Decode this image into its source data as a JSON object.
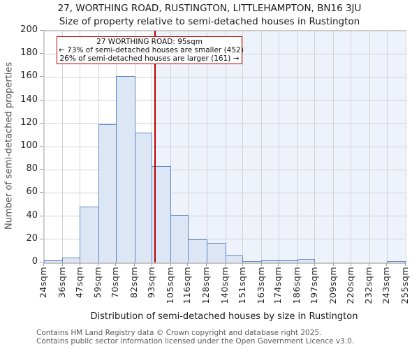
{
  "title": "27, WORTHING ROAD, RUSTINGTON, LITTLEHAMPTON, BN16 3JU",
  "subtitle": "Size of property relative to semi-detached houses in Rustington",
  "annotation": {
    "line1": "27 WORTHING ROAD: 95sqm",
    "line2": "← 73% of semi-detached houses are smaller (452)",
    "line3": "26% of semi-detached houses are larger (161) →"
  },
  "y_axis": {
    "label": "Number of semi-detached properties"
  },
  "x_axis": {
    "label": "Distribution of semi-detached houses by size in Rustington"
  },
  "footer": {
    "line1": "Contains HM Land Registry data © Crown copyright and database right 2025.",
    "line2": "Contains public sector information licensed under the Open Government Licence v3.0."
  },
  "colors": {
    "bar_fill": "#dde6f4",
    "bar_stroke": "#5b87c5",
    "marker_red": "#bb0000",
    "shade_right_of_marker": "#eef2fb",
    "gridline": "#d2d2d2",
    "annotation_border": "#bb0000"
  },
  "chart_data": {
    "type": "bar",
    "subtype": "histogram",
    "title": "27, WORTHING ROAD, RUSTINGTON, LITTLEHAMPTON, BN16 3JU",
    "subtitle": "Size of property relative to semi-detached houses in Rustington",
    "xlabel": "Distribution of semi-detached houses by size in Rustington",
    "ylabel": "Number of semi-detached properties",
    "bin_edges_sqm": [
      24,
      36,
      47,
      59,
      70,
      82,
      93,
      105,
      116,
      128,
      140,
      151,
      163,
      174,
      186,
      197,
      209,
      220,
      232,
      243,
      255
    ],
    "counts": [
      2,
      4,
      48,
      119,
      161,
      112,
      83,
      41,
      20,
      17,
      6,
      1,
      2,
      2,
      3,
      0,
      0,
      0,
      0,
      1
    ],
    "x_tick_labels": [
      "24sqm",
      "36sqm",
      "47sqm",
      "59sqm",
      "70sqm",
      "82sqm",
      "93sqm",
      "105sqm",
      "116sqm",
      "128sqm",
      "140sqm",
      "151sqm",
      "163sqm",
      "174sqm",
      "186sqm",
      "197sqm",
      "209sqm",
      "220sqm",
      "232sqm",
      "243sqm",
      "255sqm"
    ],
    "y_ticks": [
      0,
      20,
      40,
      60,
      80,
      100,
      120,
      140,
      160,
      180,
      200
    ],
    "xlim": [
      24,
      255
    ],
    "ylim": [
      0,
      200
    ],
    "grid": true,
    "legend": false,
    "marker": {
      "value_sqm": 95,
      "smaller_count": 452,
      "smaller_pct": 73,
      "larger_count": 161,
      "larger_pct": 26
    },
    "shaded_region": {
      "from_sqm": 95,
      "to_sqm": 255
    }
  }
}
